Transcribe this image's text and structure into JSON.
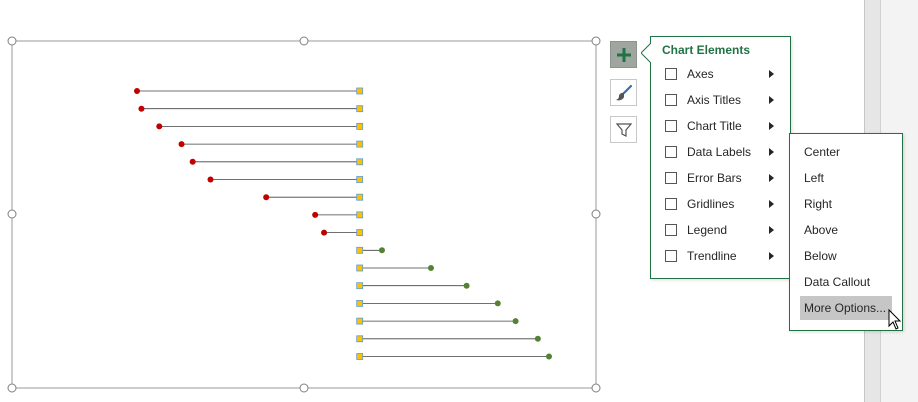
{
  "chart_data": {
    "type": "dumbbell",
    "rows": 16,
    "x_center": 0,
    "ranges": [
      {
        "start": -100,
        "end": 0
      },
      {
        "start": -98,
        "end": 0
      },
      {
        "start": -90,
        "end": 0
      },
      {
        "start": -80,
        "end": 0
      },
      {
        "start": -75,
        "end": 0
      },
      {
        "start": -67,
        "end": 0
      },
      {
        "start": -42,
        "end": 0
      },
      {
        "start": -20,
        "end": 0
      },
      {
        "start": -16,
        "end": 0
      },
      {
        "start": 0,
        "end": 10
      },
      {
        "start": 0,
        "end": 32
      },
      {
        "start": 0,
        "end": 48
      },
      {
        "start": 0,
        "end": 62
      },
      {
        "start": 0,
        "end": 70
      },
      {
        "start": 0,
        "end": 80
      },
      {
        "start": 0,
        "end": 85
      }
    ],
    "colors": {
      "negative": "#c00000",
      "positive": "#548235",
      "center": "#ffc000",
      "center_outline": "#5b9bd5",
      "line": "#404040"
    },
    "xlim": [
      -100,
      85
    ]
  },
  "side_buttons": [
    {
      "name": "chart-elements-button",
      "icon": "plus-icon"
    },
    {
      "name": "chart-styles-button",
      "icon": "paintbrush-icon"
    },
    {
      "name": "chart-filters-button",
      "icon": "filter-icon"
    }
  ],
  "chart_elements": {
    "title": "Chart Elements",
    "items": [
      {
        "label": "Axes",
        "checked": false
      },
      {
        "label": "Axis Titles",
        "checked": false
      },
      {
        "label": "Chart Title",
        "checked": false
      },
      {
        "label": "Data Labels",
        "checked": false
      },
      {
        "label": "Error Bars",
        "checked": false
      },
      {
        "label": "Gridlines",
        "checked": false
      },
      {
        "label": "Legend",
        "checked": false
      },
      {
        "label": "Trendline",
        "checked": false
      }
    ]
  },
  "data_labels_submenu": {
    "items": [
      {
        "label": "Center"
      },
      {
        "label": "Left"
      },
      {
        "label": "Right"
      },
      {
        "label": "Above"
      },
      {
        "label": "Below"
      },
      {
        "label": "Data Callout"
      },
      {
        "label": "More Options..."
      }
    ],
    "hovered_index": 6
  },
  "colors": {
    "accent": "#217346"
  }
}
